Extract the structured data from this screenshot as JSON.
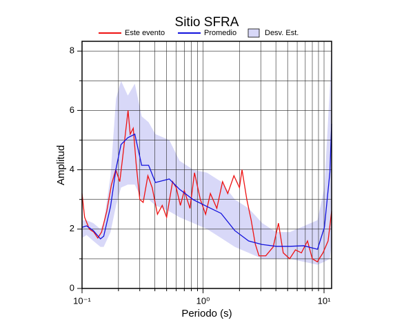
{
  "chart_data": {
    "type": "line",
    "title": "Sitio SFRA",
    "x_label": "Periodo (s)",
    "y_label": "Amplitud",
    "x_scale": "log",
    "xlim": [
      0.1,
      11.55
    ],
    "ylim": [
      0,
      8.33
    ],
    "xticks": [
      {
        "value": 0.1,
        "label": "10⁻¹"
      },
      {
        "value": 1,
        "label": "10⁰"
      },
      {
        "value": 10,
        "label": "10¹"
      }
    ],
    "xminor": [
      0.2,
      0.3,
      0.4,
      0.5,
      0.6,
      0.7,
      0.8,
      0.9,
      2,
      3,
      4,
      5,
      6,
      7,
      8,
      9
    ],
    "yticks": [
      0,
      2,
      4,
      6,
      8
    ],
    "yminor": [
      1,
      3,
      5,
      7
    ],
    "grid": true,
    "series": [
      {
        "name": "Este evento",
        "color": "#ee1111",
        "kind": "line",
        "x": [
          0.1,
          0.105,
          0.115,
          0.125,
          0.135,
          0.145,
          0.16,
          0.175,
          0.19,
          0.205,
          0.215,
          0.225,
          0.24,
          0.25,
          0.265,
          0.28,
          0.3,
          0.32,
          0.35,
          0.38,
          0.42,
          0.46,
          0.5,
          0.56,
          0.6,
          0.65,
          0.7,
          0.78,
          0.85,
          0.95,
          1.05,
          1.15,
          1.3,
          1.45,
          1.6,
          1.8,
          2.0,
          2.1,
          2.3,
          2.5,
          2.7,
          2.9,
          3.3,
          3.8,
          4.2,
          4.6,
          5.2,
          5.8,
          6.5,
          7.3,
          8.0,
          8.8,
          9.8,
          10.8,
          11.55
        ],
        "values": [
          3.2,
          2.4,
          2.0,
          1.9,
          1.7,
          1.9,
          2.6,
          3.5,
          4.0,
          3.6,
          4.3,
          5.0,
          6.0,
          5.2,
          5.4,
          4.2,
          3.0,
          2.9,
          3.8,
          3.4,
          2.5,
          2.8,
          2.4,
          3.6,
          3.4,
          2.8,
          3.3,
          2.7,
          3.9,
          3.0,
          2.5,
          3.2,
          2.7,
          3.6,
          3.2,
          3.8,
          3.4,
          4.0,
          3.0,
          2.3,
          1.5,
          1.1,
          1.1,
          1.4,
          2.2,
          1.2,
          1.0,
          1.3,
          1.2,
          1.6,
          1.0,
          0.9,
          1.2,
          1.6,
          2.6
        ]
      },
      {
        "name": "Promedio",
        "color": "#1111dd",
        "kind": "line",
        "x": [
          0.1,
          0.109,
          0.124,
          0.142,
          0.151,
          0.172,
          0.191,
          0.21,
          0.239,
          0.273,
          0.311,
          0.355,
          0.404,
          0.526,
          0.64,
          0.832,
          1.08,
          1.41,
          1.83,
          2.38,
          3.09,
          4.02,
          5.22,
          6.79,
          8.83,
          10.07,
          11.18,
          11.55
        ],
        "values": [
          2.06,
          2.11,
          1.95,
          1.67,
          1.76,
          2.76,
          4.04,
          4.85,
          5.08,
          5.2,
          4.15,
          4.15,
          3.57,
          3.69,
          3.34,
          2.99,
          2.76,
          2.53,
          1.95,
          1.6,
          1.48,
          1.42,
          1.42,
          1.44,
          1.32,
          2.06,
          3.92,
          5.55
        ]
      },
      {
        "name": "Desv. Est.",
        "color": "#d8d8f8",
        "kind": "band",
        "x": [
          0.1,
          0.109,
          0.124,
          0.142,
          0.151,
          0.172,
          0.191,
          0.21,
          0.239,
          0.273,
          0.311,
          0.355,
          0.404,
          0.526,
          0.64,
          0.832,
          1.08,
          1.41,
          1.83,
          2.38,
          3.09,
          4.02,
          5.22,
          6.79,
          8.83,
          10.07,
          11.18,
          11.55
        ],
        "upper": [
          2.3,
          2.3,
          2.2,
          2.0,
          2.2,
          3.8,
          6.4,
          7.0,
          6.5,
          6.9,
          5.8,
          5.6,
          5.2,
          5.0,
          4.3,
          4.0,
          3.9,
          3.6,
          3.0,
          2.7,
          2.2,
          1.9,
          1.9,
          2.1,
          2.3,
          3.4,
          6.8,
          8.3
        ],
        "lower": [
          1.7,
          1.8,
          1.6,
          1.4,
          1.4,
          1.9,
          2.8,
          3.4,
          3.5,
          3.5,
          3.0,
          3.0,
          2.8,
          2.6,
          2.4,
          2.2,
          2.0,
          1.7,
          1.4,
          1.2,
          1.0,
          1.0,
          1.0,
          0.9,
          0.8,
          0.9,
          1.0,
          1.5
        ]
      }
    ]
  }
}
